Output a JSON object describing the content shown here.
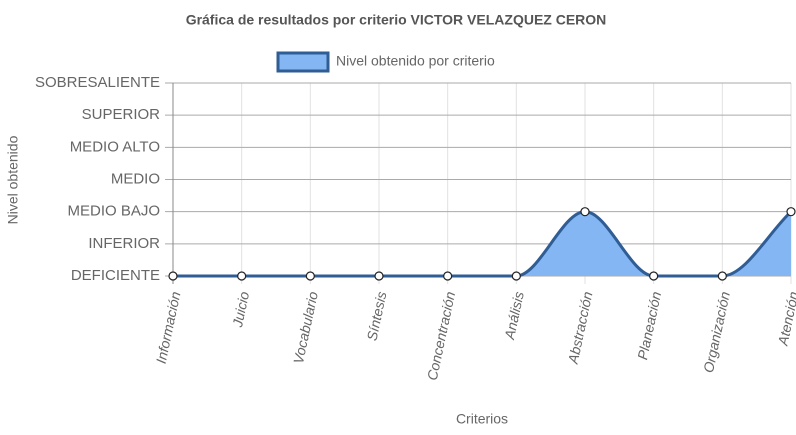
{
  "chart_data": {
    "type": "line",
    "title": "Gráfica de resultados por criterio VICTOR VELAZQUEZ CERON",
    "x_label": "Criterios",
    "y_label": "Nivel obtenido",
    "categories": [
      "Información",
      "Juicio",
      "Vocabulario",
      "Síntesis",
      "Concentración",
      "Análisis",
      "Abstracción",
      "Planeación",
      "Organización",
      "Atención"
    ],
    "series": [
      {
        "name": "Nivel obtenido por criterio",
        "color": "#2f5d94",
        "fill": "#84b6f4",
        "values": [
          0,
          0,
          0,
          0,
          0,
          0,
          2,
          0,
          0,
          2
        ]
      }
    ],
    "ylim": [
      0,
      6
    ],
    "yticks": [
      {
        "value": 0,
        "label": "DEFICIENTE"
      },
      {
        "value": 1,
        "label": "INFERIOR"
      },
      {
        "value": 2,
        "label": "MEDIO BAJO"
      },
      {
        "value": 3,
        "label": "MEDIO"
      },
      {
        "value": 4,
        "label": "MEDIO ALTO"
      },
      {
        "value": 5,
        "label": "SUPERIOR"
      },
      {
        "value": 6,
        "label": "SOBRESALIENTE"
      }
    ],
    "grid": true,
    "legend": "top"
  }
}
